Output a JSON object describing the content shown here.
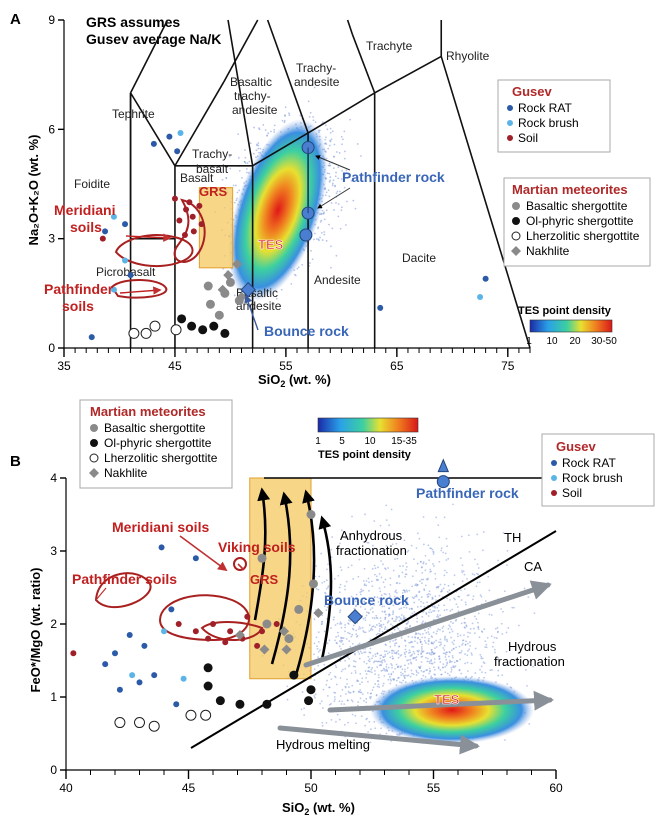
{
  "chart_data": [
    {
      "type": "scatter",
      "panel_label": "A",
      "note_lines": [
        "GRS assumes",
        "Gusev average Na/K"
      ],
      "xlabel_main": "SiO",
      "xlabel_sub": "2",
      "xlabel_tail": " (wt. %)",
      "ylabel": "Na₂O+K₂O (wt. %)",
      "xlim": [
        35,
        77
      ],
      "ylim": [
        0,
        9
      ],
      "xticks": [
        "35",
        "45",
        "55",
        "65",
        "75"
      ],
      "yticks": [
        "0",
        "3",
        "6",
        "9"
      ],
      "field_labels": [
        "Foidite",
        "Tephrite",
        "Trachy-",
        "basalt",
        "Basalt",
        "Picrobasalt",
        "Basaltic",
        "trachy-",
        "andesite",
        "Trachy-",
        "andesite",
        "Trachyte",
        "Rhyolite",
        "Dacite",
        "Andesite",
        "Basaltic",
        "andesite"
      ],
      "annotations": {
        "grs": "GRS",
        "tes": "TES",
        "meridiani": "Meridiani",
        "soils1": "soils",
        "pathfinder": "Pathfinder",
        "soils2": "soils",
        "pathfinder_rock": "Pathfinder rock",
        "bounce_rock": "Bounce rock"
      },
      "legend_gusev": {
        "title": "Gusev",
        "items": [
          {
            "label": "Rock RAT",
            "color": "#2b5aa8"
          },
          {
            "label": "Rock brush",
            "color": "#5ab4e8"
          },
          {
            "label": "Soil",
            "color": "#a0202a"
          }
        ]
      },
      "legend_martian": {
        "title": "Martian meteorites",
        "items": [
          {
            "label": "Basaltic shergottite",
            "marker": "circle-gray"
          },
          {
            "label": "Ol-phyric shergottite",
            "marker": "circle-black"
          },
          {
            "label": "Lherzolitic shergottite",
            "marker": "circle-open"
          },
          {
            "label": "Nakhlite",
            "marker": "diamond-gray"
          }
        ]
      },
      "colorbar": {
        "title": "TES point density",
        "ticks": [
          "1",
          "10",
          "20",
          "30-50"
        ]
      },
      "series": [
        {
          "name": "Rock RAT",
          "points": [
            [
              43.1,
              5.6
            ],
            [
              44.5,
              5.8
            ],
            [
              45.2,
              5.4
            ],
            [
              38.7,
              3.2
            ],
            [
              40.5,
              3.4
            ],
            [
              41.0,
              2.0
            ],
            [
              37.5,
              0.3
            ],
            [
              73.0,
              1.9
            ],
            [
              63.5,
              1.1
            ]
          ]
        },
        {
          "name": "Rock brush",
          "points": [
            [
              45.5,
              5.9
            ],
            [
              39.5,
              3.6
            ],
            [
              40.5,
              2.4
            ],
            [
              39.5,
              1.6
            ],
            [
              72.5,
              1.4
            ]
          ]
        },
        {
          "name": "Soil",
          "points": [
            [
              45.4,
              3.5
            ],
            [
              46.0,
              3.8
            ],
            [
              46.7,
              3.2
            ],
            [
              47.2,
              3.9
            ],
            [
              45.9,
              3.1
            ],
            [
              46.6,
              3.6
            ],
            [
              47.4,
              3.4
            ],
            [
              45.0,
              4.1
            ],
            [
              46.3,
              4.0
            ],
            [
              38.5,
              3.0
            ]
          ]
        },
        {
          "name": "Basaltic shergottite",
          "points": [
            [
              48.2,
              1.2
            ],
            [
              49.5,
              1.5
            ],
            [
              50.0,
              1.8
            ],
            [
              50.8,
              1.3
            ],
            [
              49.0,
              0.9
            ],
            [
              48.0,
              1.7
            ]
          ]
        },
        {
          "name": "Ol-phyric shergottite",
          "points": [
            [
              46.5,
              0.6
            ],
            [
              47.5,
              0.5
            ],
            [
              48.5,
              0.6
            ],
            [
              49.5,
              0.4
            ],
            [
              45.6,
              0.8
            ]
          ]
        },
        {
          "name": "Lherzolitic shergottite",
          "points": [
            [
              41.3,
              0.4
            ],
            [
              42.4,
              0.4
            ],
            [
              43.2,
              0.6
            ],
            [
              45.1,
              0.5
            ]
          ]
        },
        {
          "name": "Nakhlite",
          "points": [
            [
              49.8,
              2.0
            ],
            [
              50.6,
              2.3
            ],
            [
              49.3,
              1.6
            ],
            [
              51.0,
              1.4
            ]
          ]
        },
        {
          "name": "Pathfinder rock",
          "points": [
            [
              57.0,
              5.5
            ],
            [
              57.0,
              3.7
            ],
            [
              56.8,
              3.1
            ]
          ]
        },
        {
          "name": "Bounce rock",
          "points": [
            [
              51.6,
              1.6
            ]
          ]
        }
      ]
    },
    {
      "type": "scatter",
      "panel_label": "B",
      "xlabel_main": "SiO",
      "xlabel_sub": "2",
      "xlabel_tail": " (wt. %)",
      "ylabel": "FeO*/MgO (wt. ratio)",
      "xlim": [
        40,
        60
      ],
      "ylim": [
        0,
        4
      ],
      "xticks": [
        "40",
        "45",
        "50",
        "55",
        "60"
      ],
      "yticks": [
        "0",
        "1",
        "2",
        "3",
        "4"
      ],
      "annotations": {
        "meridiani_soils": "Meridiani soils",
        "viking_soils": "Viking soils",
        "pathfinder_soils": "Pathfinder soils",
        "grs": "GRS",
        "anhydrous1": "Anhydrous",
        "anhydrous2": "fractionation",
        "th": "TH",
        "ca": "CA",
        "bounce_rock": "Bounce rock",
        "pathfinder_rock": "Pathfinder rock",
        "hydrous1": "Hydrous",
        "hydrous2": "fractionation",
        "tes": "TES",
        "hydrous_melting": "Hydrous melting"
      },
      "legend_martian": {
        "title": "Martian meteorites",
        "items": [
          {
            "label": "Basaltic shergottite",
            "marker": "circle-gray"
          },
          {
            "label": "Ol-phyric shergottite",
            "marker": "circle-black"
          },
          {
            "label": "Lherzolitic shergottite",
            "marker": "circle-open"
          },
          {
            "label": "Nakhlite",
            "marker": "diamond-gray"
          }
        ]
      },
      "legend_gusev": {
        "title": "Gusev",
        "items": [
          {
            "label": "Rock RAT",
            "color": "#2b5aa8"
          },
          {
            "label": "Rock brush",
            "color": "#5ab4e8"
          },
          {
            "label": "Soil",
            "color": "#a0202a"
          }
        ]
      },
      "colorbar": {
        "title": "TES point density",
        "ticks": [
          "1",
          "5",
          "10",
          "15-35"
        ]
      },
      "series": [
        {
          "name": "Rock RAT",
          "points": [
            [
              43.9,
              3.05
            ],
            [
              45.3,
              2.9
            ],
            [
              44.3,
              2.2
            ],
            [
              42.6,
              1.85
            ],
            [
              43.2,
              1.7
            ],
            [
              42.0,
              1.6
            ],
            [
              41.6,
              1.45
            ],
            [
              43.6,
              1.3
            ],
            [
              42.2,
              1.1
            ],
            [
              43.0,
              1.2
            ],
            [
              44.5,
              0.9
            ]
          ]
        },
        {
          "name": "Rock brush",
          "points": [
            [
              44.8,
              1.25
            ],
            [
              44.0,
              1.9
            ],
            [
              42.7,
              1.3
            ]
          ]
        },
        {
          "name": "Soil",
          "points": [
            [
              44.6,
              2.0
            ],
            [
              45.3,
              1.9
            ],
            [
              46.0,
              2.0
            ],
            [
              46.7,
              1.9
            ],
            [
              47.4,
              2.1
            ],
            [
              48.0,
              1.9
            ],
            [
              45.8,
              1.8
            ],
            [
              46.5,
              1.75
            ],
            [
              47.2,
              1.8
            ],
            [
              47.8,
              1.7
            ],
            [
              40.3,
              1.6
            ],
            [
              48.6,
              2.0
            ]
          ]
        },
        {
          "name": "Basaltic shergottite",
          "points": [
            [
              48.0,
              2.9
            ],
            [
              50.0,
              3.5
            ],
            [
              50.1,
              2.55
            ],
            [
              49.5,
              2.2
            ],
            [
              48.2,
              2.0
            ],
            [
              49.1,
              1.8
            ]
          ]
        },
        {
          "name": "Ol-phyric shergottite",
          "points": [
            [
              45.8,
              1.4
            ],
            [
              45.8,
              1.15
            ],
            [
              46.3,
              0.95
            ],
            [
              47.1,
              0.9
            ],
            [
              48.2,
              0.9
            ],
            [
              49.3,
              1.3
            ],
            [
              50.0,
              1.1
            ],
            [
              49.9,
              0.95
            ]
          ]
        },
        {
          "name": "Lherzolitic shergottite",
          "points": [
            [
              43.0,
              0.65
            ],
            [
              43.6,
              0.6
            ],
            [
              45.1,
              0.75
            ],
            [
              45.7,
              0.75
            ],
            [
              42.2,
              0.65
            ]
          ]
        },
        {
          "name": "Nakhlite",
          "points": [
            [
              47.1,
              1.85
            ],
            [
              48.9,
              1.9
            ],
            [
              49.0,
              1.65
            ],
            [
              50.3,
              2.15
            ],
            [
              48.1,
              1.65
            ]
          ]
        },
        {
          "name": "Bounce rock",
          "points": [
            [
              51.8,
              2.1
            ]
          ]
        },
        {
          "name": "Pathfinder rock",
          "points": [
            [
              55.4,
              3.95
            ]
          ]
        }
      ]
    }
  ]
}
